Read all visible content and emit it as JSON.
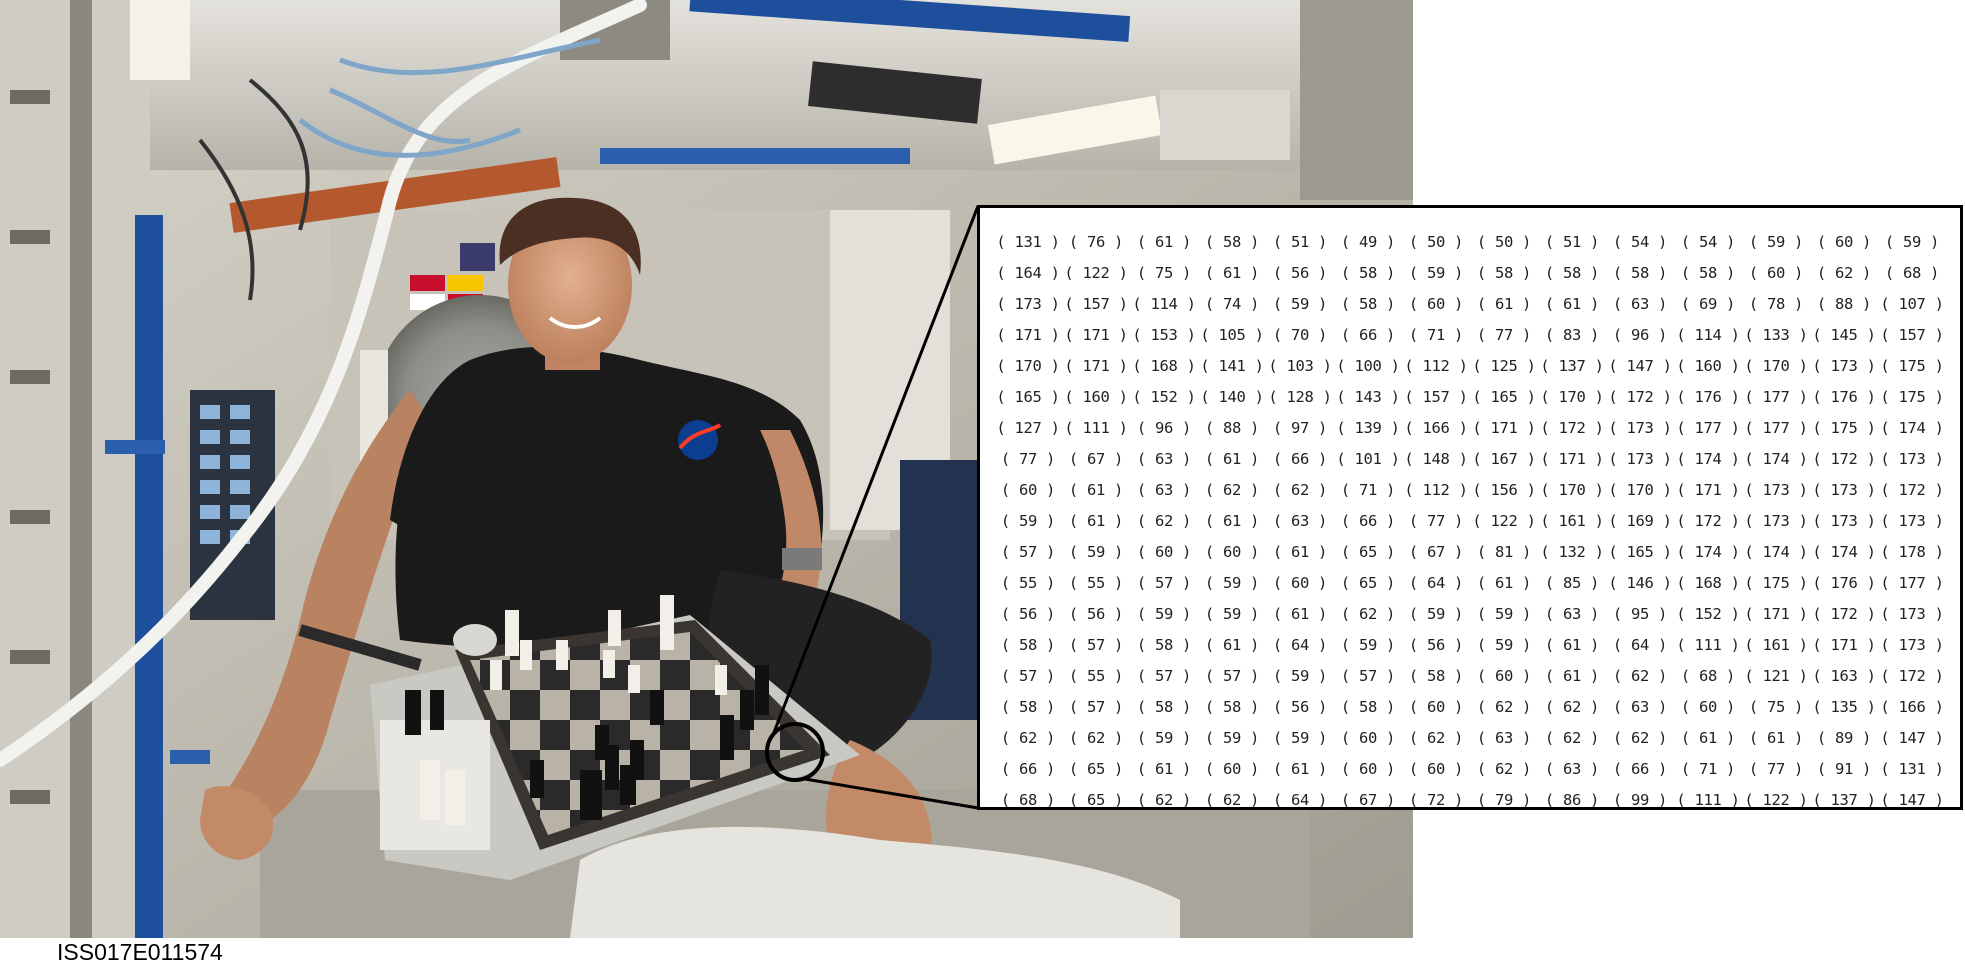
{
  "caption": {
    "image_id": "ISS017E011574"
  },
  "colors": {
    "cabin_wall": "#c9c6bd",
    "handrail_blue": "#1d4f9c",
    "shirt_black": "#1a1a1a",
    "board_light": "#b8b2a7",
    "board_dark": "#2a2a2a",
    "panel_border": "#000000"
  },
  "pixel_values": [
    [
      131,
      76,
      61,
      58,
      51,
      49,
      50,
      50,
      51,
      54,
      54,
      59,
      60,
      59
    ],
    [
      164,
      122,
      75,
      61,
      56,
      58,
      59,
      58,
      58,
      58,
      58,
      60,
      62,
      68
    ],
    [
      173,
      157,
      114,
      74,
      59,
      58,
      60,
      61,
      61,
      63,
      69,
      78,
      88,
      107
    ],
    [
      171,
      171,
      153,
      105,
      70,
      66,
      71,
      77,
      83,
      96,
      114,
      133,
      145,
      157
    ],
    [
      170,
      171,
      168,
      141,
      103,
      100,
      112,
      125,
      137,
      147,
      160,
      170,
      173,
      175
    ],
    [
      165,
      160,
      152,
      140,
      128,
      143,
      157,
      165,
      170,
      172,
      176,
      177,
      176,
      175
    ],
    [
      127,
      111,
      96,
      88,
      97,
      139,
      166,
      171,
      172,
      173,
      177,
      177,
      175,
      174
    ],
    [
      77,
      67,
      63,
      61,
      66,
      101,
      148,
      167,
      171,
      173,
      174,
      174,
      172,
      173
    ],
    [
      60,
      61,
      63,
      62,
      62,
      71,
      112,
      156,
      170,
      170,
      171,
      173,
      173,
      172
    ],
    [
      59,
      61,
      62,
      61,
      63,
      66,
      77,
      122,
      161,
      169,
      172,
      173,
      173,
      173
    ],
    [
      57,
      59,
      60,
      60,
      61,
      65,
      67,
      81,
      132,
      165,
      174,
      174,
      174,
      178
    ],
    [
      55,
      55,
      57,
      59,
      60,
      65,
      64,
      61,
      85,
      146,
      168,
      175,
      176,
      177
    ],
    [
      56,
      56,
      59,
      59,
      61,
      62,
      59,
      59,
      63,
      95,
      152,
      171,
      172,
      173
    ],
    [
      58,
      57,
      58,
      61,
      64,
      59,
      56,
      59,
      61,
      64,
      111,
      161,
      171,
      173
    ],
    [
      57,
      55,
      57,
      57,
      59,
      57,
      58,
      60,
      61,
      62,
      68,
      121,
      163,
      172
    ],
    [
      58,
      57,
      58,
      58,
      56,
      58,
      60,
      62,
      62,
      63,
      60,
      75,
      135,
      166
    ],
    [
      62,
      62,
      59,
      59,
      59,
      60,
      62,
      63,
      62,
      62,
      61,
      61,
      89,
      147
    ],
    [
      66,
      65,
      61,
      60,
      61,
      60,
      60,
      62,
      63,
      66,
      71,
      77,
      91,
      131
    ],
    [
      68,
      65,
      62,
      62,
      64,
      67,
      72,
      79,
      86,
      99,
      111,
      122,
      137,
      147
    ]
  ]
}
